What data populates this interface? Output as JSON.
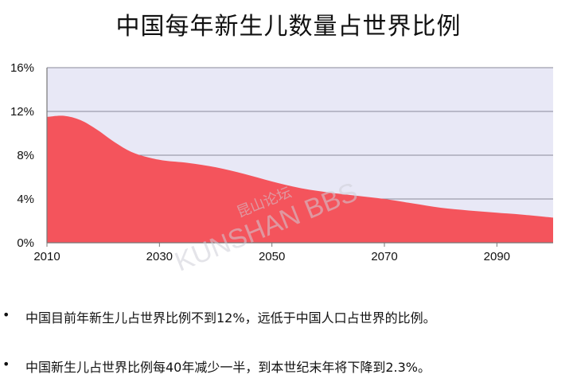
{
  "title": "中国每年新生儿数量占世界比例",
  "watermark": {
    "line1": "昆山论坛",
    "line2": "KUNSHAN BBS"
  },
  "bullets": [
    "中国目前年新生儿占世界比例不到12%，远低于中国人口占世界的比例。",
    "中国新生儿占世界比例每40年减少一半，到本世纪末年将下降到2.3%。"
  ],
  "bullet_symbol": "•",
  "chart_data": {
    "type": "area",
    "title": "中国每年新生儿数量占世界比例",
    "xlabel": "",
    "ylabel": "",
    "xlim": [
      2010,
      2100
    ],
    "ylim": [
      0,
      16
    ],
    "x_ticks": [
      2010,
      2030,
      2050,
      2070,
      2090
    ],
    "x_tick_labels": [
      "2010",
      "2030",
      "2050",
      "2070",
      "2090"
    ],
    "y_ticks": [
      0,
      4,
      8,
      12,
      16
    ],
    "y_tick_labels": [
      "0%",
      "4%",
      "8%",
      "12%",
      "16%"
    ],
    "grid": "horizontal",
    "legend": "none",
    "plot_background": "#e8e8f6",
    "colors": {
      "fill": "#f4545c",
      "grid": "#8a8a9a",
      "axis": "#777777"
    },
    "x": [
      2010,
      2013,
      2016,
      2019,
      2022,
      2025,
      2028,
      2031,
      2035,
      2040,
      2045,
      2050,
      2055,
      2060,
      2065,
      2070,
      2075,
      2080,
      2085,
      2090,
      2095,
      2100
    ],
    "values": [
      11.5,
      11.6,
      11.2,
      10.3,
      9.2,
      8.3,
      7.8,
      7.5,
      7.3,
      6.9,
      6.3,
      5.6,
      5.0,
      4.6,
      4.3,
      4.0,
      3.6,
      3.2,
      2.95,
      2.75,
      2.55,
      2.3
    ]
  }
}
